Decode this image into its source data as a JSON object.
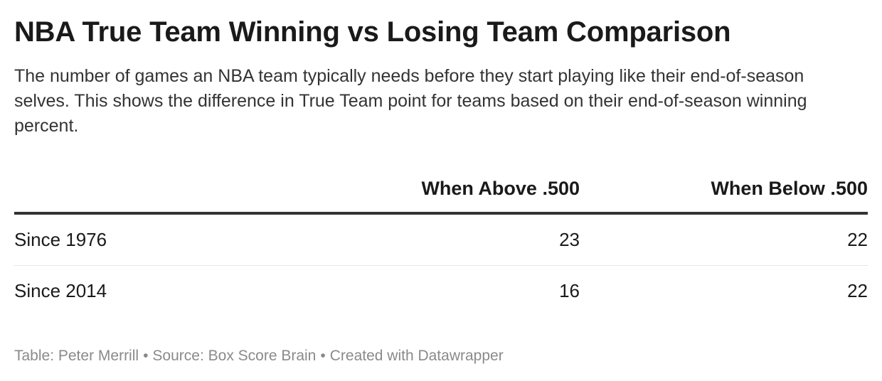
{
  "title": "NBA True Team Winning vs Losing Team Comparison",
  "subtitle": "The number of games an NBA team typically needs before they start playing like their end-of-season selves. This shows the difference in True Team point for teams based on their end-of-season winning percent.",
  "chart_data": {
    "type": "table",
    "title": "NBA True Team Winning vs Losing Team Comparison",
    "columns": [
      "",
      "When Above .500",
      "When Below .500"
    ],
    "rows": [
      {
        "label": "Since 1976",
        "above": "23",
        "below": "22"
      },
      {
        "label": "Since 2014",
        "above": "16",
        "below": "22"
      }
    ]
  },
  "footer": {
    "table_credit": "Table: Peter Merrill",
    "source": "Source: Box Score Brain",
    "created_with": "Created with Datawrapper",
    "separator": "•"
  }
}
